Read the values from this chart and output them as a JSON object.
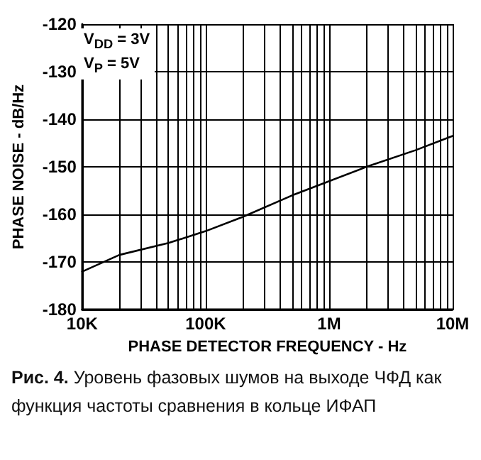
{
  "chart_data": {
    "type": "line",
    "xlabel": "PHASE DETECTOR FREQUENCY - Hz",
    "ylabel": "PHASE NOISE - dB/Hz",
    "x": [
      10000,
      20000,
      50000,
      100000,
      200000,
      500000,
      1000000,
      2000000,
      5000000,
      10000000
    ],
    "series": [
      {
        "color": "#000000",
        "values": [
          -172,
          -168.5,
          -166,
          -163.5,
          -160.5,
          -156,
          -153,
          -150,
          -146.5,
          -143.5
        ]
      }
    ],
    "xlim": [
      10000,
      10000000
    ],
    "xticks": [
      {
        "value": 10000,
        "label": "10K"
      },
      {
        "value": 100000,
        "label": "100K"
      },
      {
        "value": 1000000,
        "label": "1M"
      },
      {
        "value": 10000000,
        "label": "10M"
      }
    ],
    "ylim": [
      -180,
      -120
    ],
    "yticks": [
      -180,
      -170,
      -160,
      -150,
      -140,
      -130,
      -120
    ],
    "log": "x",
    "grid": true,
    "marker": "none",
    "line_style": "solid",
    "annotations": [
      "V$_{DD}$ = 3V",
      "V$_{P}$ = 5V",
      "Рис. 4. Уровень фазовых шумов на выходе ЧФД как функция частоты сравнения в кольце ИФАП"
    ]
  }
}
